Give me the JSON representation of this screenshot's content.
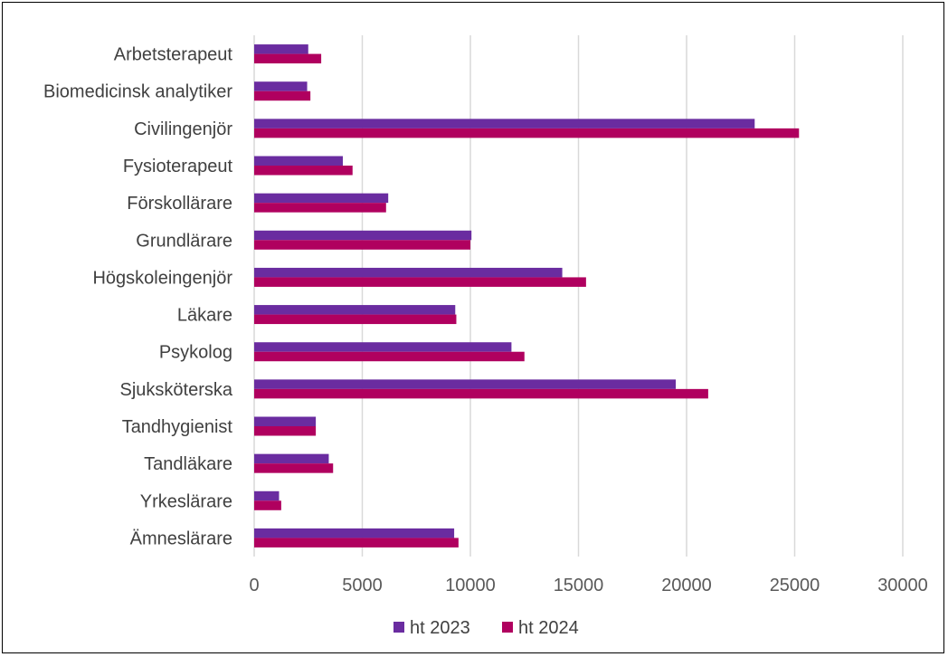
{
  "chart_data": {
    "type": "bar",
    "orientation": "horizontal",
    "categories": [
      "Arbetsterapeut",
      "Biomedicinsk analytiker",
      "Civilingenjör",
      "Fysioterapeut",
      "Förskollärare",
      "Grundlärare",
      "Högskoleingenjör",
      "Läkare",
      "Psykolog",
      "Sjuksköterska",
      "Tandhygienist",
      "Tandläkare",
      "Yrkeslärare",
      "Ämneslärare"
    ],
    "series": [
      {
        "name": "ht 2023",
        "color": "#6a2ca0",
        "values": [
          2500,
          2450,
          23150,
          4100,
          6200,
          10050,
          14250,
          9300,
          11900,
          19500,
          2850,
          3450,
          1150,
          9250
        ]
      },
      {
        "name": "ht 2024",
        "color": "#b0005f",
        "values": [
          3100,
          2600,
          25200,
          4550,
          6100,
          10000,
          15350,
          9350,
          12500,
          21000,
          2850,
          3650,
          1250,
          9450
        ]
      }
    ],
    "xlim": [
      0,
      30000
    ],
    "xticks": [
      "0",
      "5000",
      "10000",
      "15000",
      "20000",
      "25000",
      "30000"
    ],
    "grid": true,
    "legend_position": "bottom"
  }
}
